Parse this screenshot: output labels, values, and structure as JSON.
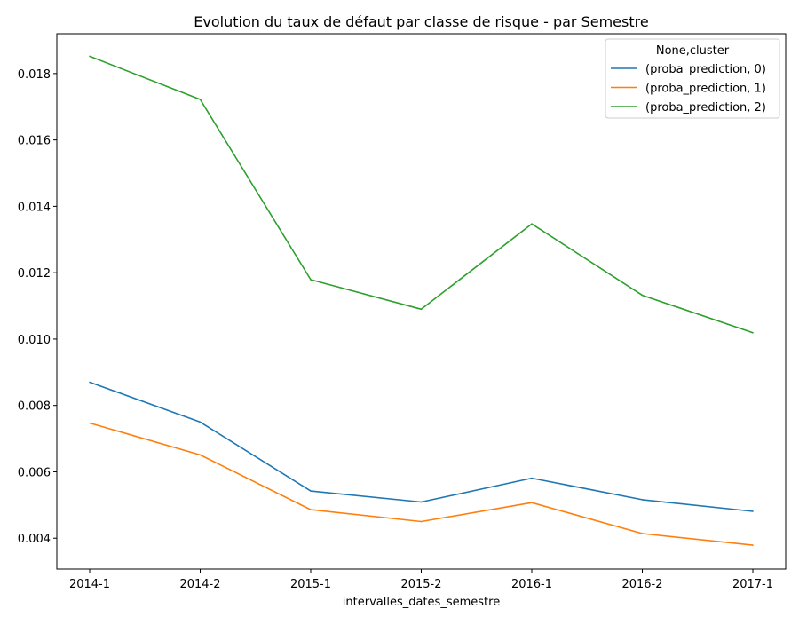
{
  "chart_data": {
    "type": "line",
    "title": "Evolution du taux de défaut par classe de risque - par Semestre",
    "xlabel": "intervalles_dates_semestre",
    "ylabel": "",
    "categories": [
      "2014-1",
      "2014-2",
      "2015-1",
      "2015-2",
      "2016-1",
      "2016-2",
      "2017-1"
    ],
    "ylim": [
      0.00307,
      0.0192
    ],
    "yticks": [
      0.004,
      0.006,
      0.008,
      0.01,
      0.012,
      0.014,
      0.016,
      0.018
    ],
    "ytick_labels": [
      "0.004",
      "0.006",
      "0.008",
      "0.010",
      "0.012",
      "0.014",
      "0.016",
      "0.018"
    ],
    "grid": false,
    "legend": {
      "title": "None,cluster",
      "placement": "top-right"
    },
    "series": [
      {
        "name": "(proba_prediction, 0)",
        "color": "#1f77b4",
        "values": [
          0.0087,
          0.0075,
          0.00542,
          0.00509,
          0.00581,
          0.00516,
          0.00481
        ]
      },
      {
        "name": "(proba_prediction, 1)",
        "color": "#ff7f0e",
        "values": [
          0.00747,
          0.00651,
          0.00486,
          0.0045,
          0.00507,
          0.00414,
          0.00379
        ]
      },
      {
        "name": "(proba_prediction, 2)",
        "color": "#2ca02c",
        "values": [
          0.01852,
          0.01722,
          0.01179,
          0.0109,
          0.01347,
          0.01132,
          0.01019
        ]
      }
    ]
  }
}
